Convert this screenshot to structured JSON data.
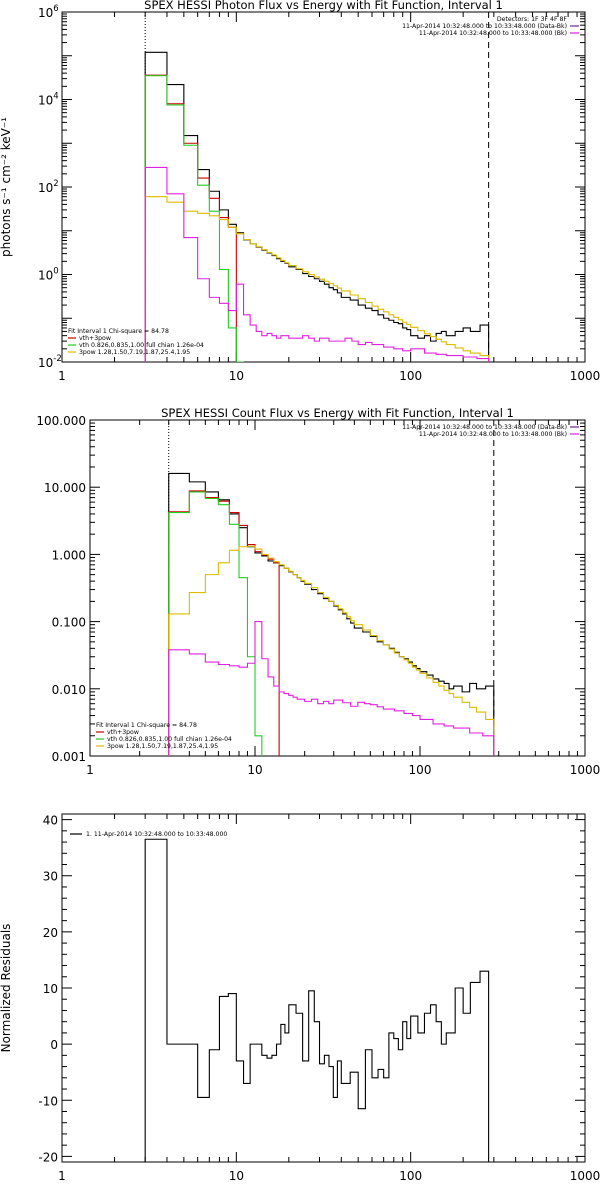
{
  "chart_data": [
    {
      "id": "photon",
      "type": "line",
      "step": "histogram",
      "title": "SPEX HESSI Photon Flux vs Energy with Fit Function, Interval 1",
      "xlabel": "",
      "ylabel": "photons s⁻¹ cm⁻² keV⁻¹",
      "xscale": "log",
      "yscale": "log",
      "xlim": [
        1,
        1000
      ],
      "ylim": [
        0.01,
        1000000
      ],
      "xticks": [
        {
          "v": 1,
          "label": "1"
        },
        {
          "v": 10,
          "label": "10"
        },
        {
          "v": 100,
          "label": "100"
        },
        {
          "v": 1000,
          "label": "1000"
        }
      ],
      "yticks": [
        {
          "v": 0.01,
          "base": "10",
          "exp": "-2"
        },
        {
          "v": 1,
          "base": "10",
          "exp": "0"
        },
        {
          "v": 100,
          "base": "10",
          "exp": "2"
        },
        {
          "v": 10000,
          "base": "10",
          "exp": "4"
        },
        {
          "v": 1000000,
          "base": "10",
          "exp": "6"
        }
      ],
      "vlines": [
        {
          "x": 3,
          "style": "dotted",
          "color": "#000000"
        },
        {
          "x": 280,
          "style": "dashed",
          "color": "#000000"
        }
      ],
      "legend_topright": [
        {
          "text": "Detectors: 1F 3F 4F 8F",
          "color": ""
        },
        {
          "text": "11-Apr-2014 10:32:48.000 to 10:33:48.000 (Data-Bk)",
          "color": "#6b2b8f"
        },
        {
          "text": "11-Apr-2014 10:32:48.000 to 10:33:48.000 (Bk)",
          "color": "#e020e0"
        }
      ],
      "legend_bottomleft": [
        {
          "text": "Fit Interval 1     Chi-square = 84.78",
          "color": ""
        },
        {
          "text": "vth+3pow",
          "color": "#cc0000"
        },
        {
          "text": "vth 0.826,0.835,1.00  full chian 1.26e-04",
          "color": "#22cc22"
        },
        {
          "text": "3pow 1.28,1.50,7.19,1.87,25.4,1.95",
          "color": "#ddbb00"
        }
      ],
      "series": [
        {
          "color": "#000000",
          "edges": [
            3,
            4,
            5,
            6,
            7,
            8,
            9,
            10,
            11,
            12,
            13,
            14,
            15,
            16,
            17,
            18,
            19,
            20,
            22,
            24,
            26,
            28,
            30,
            32,
            34,
            36,
            38,
            40,
            45,
            50,
            55,
            60,
            65,
            70,
            75,
            80,
            85,
            90,
            95,
            100,
            110,
            120,
            130,
            140,
            150,
            160,
            180,
            200,
            220,
            250,
            280
          ],
          "values": [
            120000,
            22000,
            1500,
            250,
            80,
            30,
            14,
            9,
            6.2,
            5,
            4.2,
            3.6,
            3.1,
            2.7,
            2.3,
            2.0,
            1.8,
            1.5,
            1.3,
            1.05,
            0.9,
            0.8,
            0.7,
            0.6,
            0.5,
            0.45,
            0.38,
            0.3,
            0.26,
            0.2,
            0.17,
            0.15,
            0.12,
            0.1,
            0.09,
            0.08,
            0.075,
            0.06,
            0.055,
            0.04,
            0.035,
            0.04,
            0.03,
            0.045,
            0.05,
            0.04,
            0.05,
            0.06,
            0.05,
            0.07
          ]
        },
        {
          "color": "#cc0000",
          "edges": [
            3,
            4,
            5,
            6,
            7,
            8,
            9,
            10
          ],
          "values": [
            36000,
            8000,
            1000,
            160,
            55,
            20,
            12
          ]
        },
        {
          "color": "#22cc22",
          "edges": [
            3,
            4,
            5,
            6,
            7,
            8,
            9,
            10,
            11
          ],
          "values": [
            35000,
            7500,
            900,
            110,
            28,
            1.3,
            0.06,
            0.01
          ]
        },
        {
          "color": "#ddbb00",
          "edges": [
            3,
            4,
            5,
            6,
            7,
            8,
            9,
            10,
            11,
            12,
            13,
            14,
            15,
            16,
            17,
            18,
            19,
            20,
            22,
            24,
            26,
            28,
            30,
            32,
            34,
            36,
            38,
            40,
            45,
            50,
            55,
            60,
            65,
            70,
            75,
            80,
            85,
            90,
            95,
            100,
            110,
            120,
            130,
            140,
            150,
            160,
            180,
            200,
            220,
            250,
            280
          ],
          "values": [
            60,
            45,
            28,
            25,
            22,
            18,
            12,
            8.5,
            6.3,
            5.0,
            4.3,
            3.7,
            3.2,
            2.8,
            2.4,
            2.1,
            1.85,
            1.6,
            1.35,
            1.15,
            1.0,
            0.88,
            0.78,
            0.7,
            0.62,
            0.55,
            0.49,
            0.42,
            0.34,
            0.28,
            0.23,
            0.19,
            0.16,
            0.14,
            0.12,
            0.105,
            0.092,
            0.081,
            0.072,
            0.062,
            0.052,
            0.044,
            0.038,
            0.033,
            0.029,
            0.025,
            0.021,
            0.018,
            0.016,
            0.014
          ]
        },
        {
          "color": "#e020e0",
          "edges": [
            3,
            4,
            5,
            6,
            7,
            8,
            9,
            10,
            11,
            12,
            13,
            14,
            15,
            16,
            17,
            18,
            20,
            22,
            24,
            26,
            28,
            30,
            34,
            38,
            42,
            46,
            50,
            55,
            60,
            70,
            80,
            90,
            100,
            120,
            140,
            160,
            200,
            240,
            280
          ],
          "values": [
            280,
            70,
            7,
            0.8,
            0.3,
            0.22,
            0.15,
            0.6,
            0.12,
            0.07,
            0.05,
            0.04,
            0.045,
            0.04,
            0.035,
            0.04,
            0.035,
            0.035,
            0.04,
            0.035,
            0.03,
            0.035,
            0.03,
            0.03,
            0.035,
            0.03,
            0.025,
            0.028,
            0.025,
            0.022,
            0.02,
            0.018,
            0.02,
            0.016,
            0.015,
            0.014,
            0.013,
            0.012
          ]
        }
      ]
    },
    {
      "id": "count",
      "type": "line",
      "step": "histogram",
      "title": "SPEX HESSI Count Flux vs Energy with Fit Function, Interval 1",
      "xlabel": "",
      "ylabel": "",
      "xscale": "log",
      "yscale": "log",
      "xlim": [
        1,
        1000
      ],
      "ylim": [
        0.001,
        100
      ],
      "xticks": [
        {
          "v": 1,
          "label": "1"
        },
        {
          "v": 10,
          "label": "10"
        },
        {
          "v": 100,
          "label": "100"
        },
        {
          "v": 1000,
          "label": "1000"
        }
      ],
      "yticks": [
        {
          "v": 0.001,
          "label": "0.001"
        },
        {
          "v": 0.01,
          "label": "0.010"
        },
        {
          "v": 0.1,
          "label": "0.100"
        },
        {
          "v": 1,
          "label": "1.000"
        },
        {
          "v": 10,
          "label": "10.000"
        },
        {
          "v": 100,
          "label": "100.000"
        }
      ],
      "vlines": [
        {
          "x": 3,
          "style": "dotted",
          "color": "#000000"
        },
        {
          "x": 280,
          "style": "dashed",
          "color": "#000000"
        }
      ],
      "legend_topright": [
        {
          "text": "11-Apr-2014 10:32:48.000 to 10:33:48.000 (Data-Bk)",
          "color": "#6b2b8f"
        },
        {
          "text": "11-Apr-2014 10:32:48.000 to 10:33:48.000 (Bk)",
          "color": "#e020e0"
        }
      ],
      "legend_bottomleft": [
        {
          "text": "Fit Interval 1     Chi-square = 84.78",
          "color": ""
        },
        {
          "text": "vth+3pow",
          "color": "#cc0000"
        },
        {
          "text": "vth 0.826,0.835,1.00  full chian 1.26e-04",
          "color": "#22cc22"
        },
        {
          "text": "3pow 1.28,1.50,7.19,1.87,25.4,1.95",
          "color": "#ddbb00"
        }
      ],
      "series": [
        {
          "color": "#000000",
          "edges": [
            3,
            4,
            5,
            6,
            7,
            8,
            9,
            10,
            11,
            12,
            13,
            14,
            15,
            16,
            17,
            18,
            19,
            20,
            22,
            24,
            26,
            28,
            30,
            32,
            34,
            36,
            38,
            40,
            45,
            50,
            55,
            60,
            65,
            70,
            75,
            80,
            85,
            90,
            95,
            100,
            110,
            120,
            130,
            140,
            150,
            160,
            180,
            200,
            220,
            250,
            280
          ],
          "values": [
            16,
            12,
            8.5,
            6.5,
            4,
            2.5,
            1.3,
            1.05,
            0.95,
            0.8,
            0.75,
            0.68,
            0.62,
            0.55,
            0.5,
            0.45,
            0.4,
            0.36,
            0.3,
            0.26,
            0.22,
            0.2,
            0.17,
            0.15,
            0.13,
            0.11,
            0.095,
            0.08,
            0.07,
            0.06,
            0.05,
            0.045,
            0.04,
            0.035,
            0.03,
            0.028,
            0.025,
            0.022,
            0.02,
            0.018,
            0.016,
            0.014,
            0.013,
            0.012,
            0.01,
            0.011,
            0.009,
            0.012,
            0.01,
            0.011
          ]
        },
        {
          "color": "#cc0000",
          "edges": [
            3,
            4,
            5,
            6,
            7,
            8,
            9,
            10,
            11,
            12,
            13,
            14
          ],
          "values": [
            4.3,
            8.8,
            7.0,
            6.2,
            4.2,
            2.7,
            1.4,
            1.1,
            0.98,
            0.85,
            0.75
          ]
        },
        {
          "color": "#22cc22",
          "edges": [
            3,
            4,
            5,
            6,
            7,
            8,
            9,
            10,
            11
          ],
          "values": [
            4.2,
            8.5,
            6.8,
            5.5,
            2.8,
            0.45,
            0.03,
            0.002
          ]
        },
        {
          "color": "#ddbb00",
          "edges": [
            3,
            4,
            5,
            6,
            7,
            8,
            9,
            10,
            11,
            12,
            13,
            14,
            15,
            16,
            17,
            18,
            19,
            20,
            22,
            24,
            26,
            28,
            30,
            32,
            34,
            36,
            38,
            40,
            45,
            50,
            55,
            60,
            65,
            70,
            75,
            80,
            85,
            90,
            95,
            100,
            110,
            120,
            130,
            140,
            150,
            160,
            180,
            200,
            220,
            250,
            280
          ],
          "values": [
            0.13,
            0.27,
            0.5,
            0.75,
            1.15,
            1.3,
            1.32,
            1.2,
            1.0,
            0.88,
            0.78,
            0.7,
            0.62,
            0.56,
            0.5,
            0.45,
            0.41,
            0.37,
            0.32,
            0.27,
            0.23,
            0.2,
            0.175,
            0.155,
            0.135,
            0.118,
            0.103,
            0.09,
            0.075,
            0.062,
            0.052,
            0.045,
            0.039,
            0.034,
            0.03,
            0.027,
            0.024,
            0.021,
            0.019,
            0.017,
            0.0145,
            0.0125,
            0.011,
            0.0095,
            0.0085,
            0.0075,
            0.0063,
            0.0053,
            0.0045,
            0.0035
          ]
        },
        {
          "color": "#e020e0",
          "edges": [
            3,
            4,
            5,
            6,
            7,
            8,
            9,
            10,
            11,
            12,
            13,
            14,
            15,
            16,
            17,
            18,
            20,
            22,
            24,
            26,
            28,
            30,
            34,
            38,
            42,
            46,
            50,
            55,
            60,
            70,
            80,
            90,
            100,
            120,
            140,
            160,
            200,
            240,
            280
          ],
          "values": [
            0.038,
            0.033,
            0.025,
            0.023,
            0.022,
            0.021,
            0.024,
            0.1,
            0.028,
            0.015,
            0.011,
            0.009,
            0.0085,
            0.008,
            0.0075,
            0.007,
            0.0065,
            0.007,
            0.006,
            0.0065,
            0.006,
            0.0068,
            0.0062,
            0.0055,
            0.0063,
            0.006,
            0.0058,
            0.0054,
            0.005,
            0.0047,
            0.0043,
            0.004,
            0.0035,
            0.003,
            0.0028,
            0.0026,
            0.0022,
            0.002
          ]
        }
      ]
    },
    {
      "id": "residuals",
      "type": "line",
      "step": "histogram",
      "title": "",
      "xlabel": "",
      "ylabel": "Normalized Residuals",
      "xscale": "log",
      "yscale": "linear",
      "xlim": [
        1,
        1000
      ],
      "ylim": [
        -21,
        41
      ],
      "xticks": [
        {
          "v": 1,
          "label": "1"
        },
        {
          "v": 10,
          "label": "10"
        },
        {
          "v": 100,
          "label": "100"
        },
        {
          "v": 1000,
          "label": "1000"
        }
      ],
      "yticks": [
        {
          "v": -20,
          "label": "-20"
        },
        {
          "v": -10,
          "label": "-10"
        },
        {
          "v": 0,
          "label": "0"
        },
        {
          "v": 10,
          "label": "10"
        },
        {
          "v": 20,
          "label": "20"
        },
        {
          "v": 30,
          "label": "30"
        },
        {
          "v": 40,
          "label": "40"
        }
      ],
      "vlines": [],
      "legend_topleft": [
        {
          "text": "1. 11-Apr-2014 10:32:48.000 to 10:33:48.000",
          "color": "#000000"
        }
      ],
      "series": [
        {
          "color": "#000000",
          "dropToBottom": true,
          "edges": [
            3,
            4,
            5,
            6,
            7,
            8,
            9,
            10,
            11,
            12,
            13,
            14,
            15,
            16,
            17,
            18,
            19,
            20,
            22,
            24,
            26,
            28,
            30,
            32,
            34,
            36,
            38,
            40,
            45,
            50,
            55,
            60,
            65,
            70,
            75,
            80,
            85,
            90,
            95,
            100,
            110,
            120,
            130,
            140,
            150,
            160,
            180,
            200,
            220,
            250,
            280
          ],
          "values": [
            36.5,
            0,
            0,
            -9.5,
            -1,
            8.5,
            9,
            -3,
            -7,
            0,
            0,
            -2,
            -2.5,
            -2,
            0,
            3.5,
            2,
            7,
            5.5,
            -3,
            9.5,
            4,
            -3.5,
            -2,
            -4,
            -9.5,
            -3,
            -7,
            -5,
            -11.5,
            -1,
            -6,
            -4.5,
            -6,
            2,
            1,
            -1,
            4,
            1,
            5,
            2,
            5.5,
            7,
            4,
            0,
            2,
            10,
            5.5,
            11,
            13
          ]
        }
      ]
    }
  ]
}
